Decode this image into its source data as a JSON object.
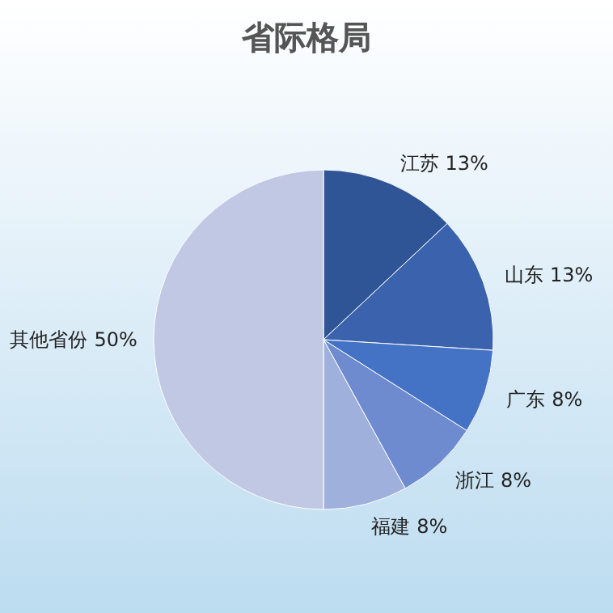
{
  "chart_data": {
    "type": "pie",
    "title": "省际格局",
    "categories": [
      "江苏",
      "山东",
      "广东",
      "浙江",
      "福建",
      "其他省份"
    ],
    "values": [
      13,
      13,
      8,
      8,
      8,
      50
    ],
    "colors": [
      "#2f5597",
      "#3a62ad",
      "#4472c4",
      "#6f8bd0",
      "#9fb0dc",
      "#c0c8e4"
    ],
    "value_labels": [
      "13%",
      "13%",
      "8%",
      "8%",
      "8%",
      "50%"
    ]
  }
}
